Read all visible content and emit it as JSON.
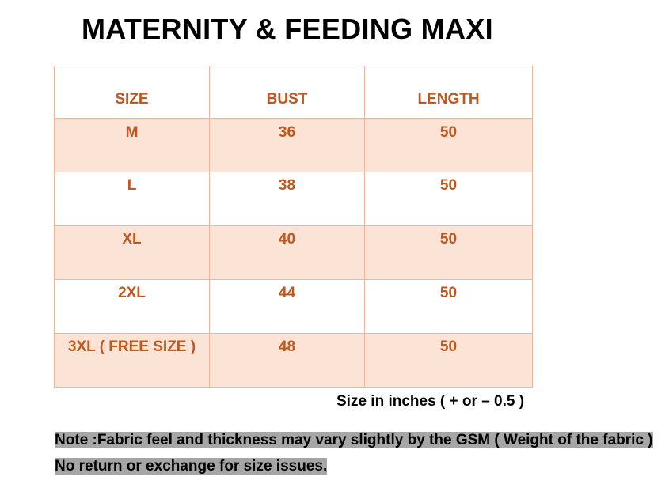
{
  "title": "MATERNITY & FEEDING MAXI",
  "table": {
    "headers": [
      "SIZE",
      "BUST",
      "LENGTH"
    ],
    "rows": [
      {
        "size": "M",
        "bust": "36",
        "length": "50"
      },
      {
        "size": "L",
        "bust": "38",
        "length": "50"
      },
      {
        "size": "XL",
        "bust": "40",
        "length": "50"
      },
      {
        "size": "2XL",
        "bust": "44",
        "length": "50"
      },
      {
        "size": "3XL ( FREE SIZE )",
        "bust": "48",
        "length": "50"
      }
    ]
  },
  "inches_note": "Size in inches ( + or  – 0.5 )",
  "fabric_note": "Note :Fabric feel and thickness may vary slightly by the GSM ( Weight of the fabric ) No return or exchange for size issues.",
  "colors": {
    "header_text": "#c0571d",
    "border": "#f0b69a",
    "row_shade": "#fbe3d6",
    "note_highlight": "#a6a6a6"
  }
}
